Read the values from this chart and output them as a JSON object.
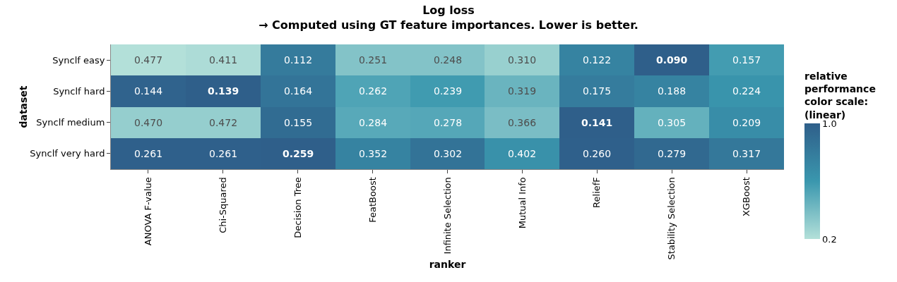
{
  "chart_data": {
    "type": "heatmap",
    "title": "Log loss",
    "subtitle": "→ Computed using GT feature importances. Lower is better.",
    "xlabel": "ranker",
    "ylabel": "dataset",
    "clabel": "relative\nperformance\ncolor scale:\n(linear)",
    "categories": [
      "ANOVA F-value",
      "Chi-Squared",
      "Decision Tree",
      "FeatBoost",
      "Infinite Selection",
      "Mutual Info",
      "ReliefF",
      "Stability Selection",
      "XGBoost"
    ],
    "y_categories": [
      "Synclf easy",
      "Synclf hard",
      "Synclf medium",
      "Synclf very hard"
    ],
    "cells": [
      [
        0.2,
        0.22,
        0.8,
        0.36,
        0.36,
        0.29,
        0.74,
        1.0,
        0.57
      ],
      [
        0.97,
        1.0,
        0.85,
        0.53,
        0.58,
        0.44,
        0.79,
        0.74,
        0.62
      ],
      [
        0.3,
        0.3,
        0.91,
        0.5,
        0.51,
        0.39,
        1.0,
        0.46,
        0.67
      ],
      [
        0.99,
        0.99,
        1.0,
        0.74,
        0.86,
        0.64,
        0.99,
        0.93,
        0.82
      ]
    ],
    "annotations": [
      "0.477",
      "0.411",
      "0.112",
      "0.251",
      "0.248",
      "0.310",
      "0.122",
      "0.090",
      "0.157",
      "0.144",
      "0.139",
      "0.164",
      "0.262",
      "0.239",
      "0.319",
      "0.175",
      "0.188",
      "0.224",
      "0.470",
      "0.472",
      "0.155",
      "0.284",
      "0.278",
      "0.366",
      "0.141",
      "0.305",
      "0.209",
      "0.261",
      "0.261",
      "0.259",
      "0.352",
      "0.302",
      "0.402",
      "0.260",
      "0.279",
      "0.317"
    ],
    "clim": [
      0.2,
      1.0
    ],
    "cticks": [
      {
        "value": 0.2,
        "label": "0.2"
      },
      {
        "value": 1.0,
        "label": "1.0"
      }
    ]
  }
}
